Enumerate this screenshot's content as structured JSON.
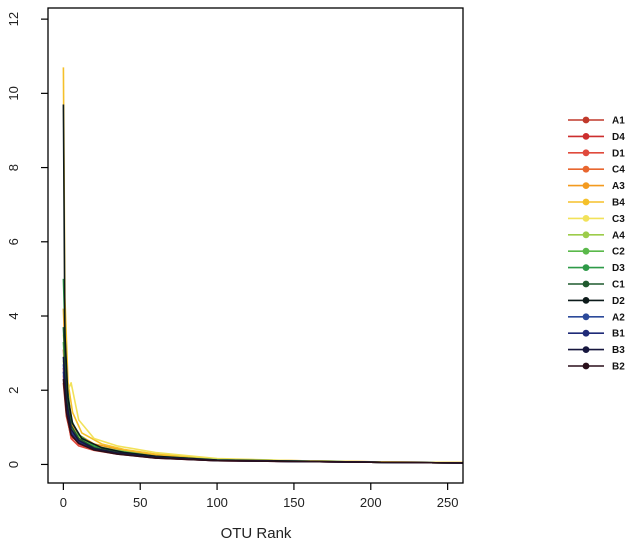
{
  "chart_data": {
    "type": "line",
    "title": "",
    "xlabel": "OTU Rank",
    "ylabel": "",
    "xlim": [
      -10,
      260
    ],
    "ylim": [
      -0.5,
      12.3
    ],
    "x_ticks": [
      0,
      50,
      100,
      150,
      200,
      250
    ],
    "y_ticks": [
      0,
      2,
      4,
      6,
      8,
      10,
      12
    ],
    "grid": false,
    "legend_position": "right",
    "series": [
      {
        "name": "A1",
        "color": "#c0392b",
        "start": 2.2,
        "values": [
          [
            0,
            2.2
          ],
          [
            2,
            1.3
          ],
          [
            5,
            0.75
          ],
          [
            10,
            0.6
          ],
          [
            20,
            0.42
          ],
          [
            35,
            0.3
          ],
          [
            60,
            0.18
          ],
          [
            100,
            0.1
          ],
          [
            150,
            0.08
          ],
          [
            200,
            0.06
          ],
          [
            260,
            0.04
          ]
        ]
      },
      {
        "name": "D4",
        "color": "#cc2e2e",
        "start": 2.6,
        "values": [
          [
            0,
            2.6
          ],
          [
            2,
            1.5
          ],
          [
            5,
            0.8
          ],
          [
            10,
            0.55
          ],
          [
            20,
            0.4
          ],
          [
            35,
            0.3
          ],
          [
            60,
            0.18
          ],
          [
            100,
            0.11
          ],
          [
            150,
            0.08
          ],
          [
            200,
            0.06
          ],
          [
            260,
            0.04
          ]
        ]
      },
      {
        "name": "D1",
        "color": "#e04a3c",
        "start": 2.4,
        "values": [
          [
            0,
            2.4
          ],
          [
            2,
            1.4
          ],
          [
            5,
            0.7
          ],
          [
            10,
            0.5
          ],
          [
            20,
            0.38
          ],
          [
            35,
            0.28
          ],
          [
            60,
            0.17
          ],
          [
            100,
            0.1
          ],
          [
            150,
            0.08
          ],
          [
            200,
            0.06
          ],
          [
            260,
            0.04
          ]
        ]
      },
      {
        "name": "C4",
        "color": "#e8662f",
        "start": 3.1,
        "values": [
          [
            0,
            3.1
          ],
          [
            2,
            1.7
          ],
          [
            5,
            0.9
          ],
          [
            10,
            0.62
          ],
          [
            20,
            0.45
          ],
          [
            35,
            0.33
          ],
          [
            60,
            0.2
          ],
          [
            100,
            0.12
          ],
          [
            150,
            0.09
          ],
          [
            200,
            0.06
          ],
          [
            260,
            0.04
          ]
        ]
      },
      {
        "name": "A3",
        "color": "#f39a1f",
        "start": 4.2,
        "values": [
          [
            0,
            4.2
          ],
          [
            2,
            2.0
          ],
          [
            5,
            1.1
          ],
          [
            10,
            0.8
          ],
          [
            20,
            0.55
          ],
          [
            35,
            0.42
          ],
          [
            60,
            0.25
          ],
          [
            100,
            0.14
          ],
          [
            150,
            0.1
          ],
          [
            200,
            0.07
          ],
          [
            260,
            0.05
          ]
        ]
      },
      {
        "name": "B4",
        "color": "#f5c02a",
        "start": 10.7,
        "values": [
          [
            0,
            10.7
          ],
          [
            1,
            4.5
          ],
          [
            3,
            2.2
          ],
          [
            6,
            1.4
          ],
          [
            12,
            0.85
          ],
          [
            25,
            0.55
          ],
          [
            40,
            0.4
          ],
          [
            60,
            0.28
          ],
          [
            100,
            0.15
          ],
          [
            150,
            0.1
          ],
          [
            200,
            0.07
          ],
          [
            260,
            0.05
          ]
        ]
      },
      {
        "name": "C3",
        "color": "#f2e25a",
        "start": 3.5,
        "values": [
          [
            0,
            3.5
          ],
          [
            3,
            2.0
          ],
          [
            5,
            2.2
          ],
          [
            10,
            1.2
          ],
          [
            20,
            0.7
          ],
          [
            35,
            0.5
          ],
          [
            60,
            0.32
          ],
          [
            100,
            0.16
          ],
          [
            150,
            0.1
          ],
          [
            200,
            0.07
          ],
          [
            260,
            0.05
          ]
        ]
      },
      {
        "name": "A4",
        "color": "#9ccc4a",
        "start": 2.8,
        "values": [
          [
            0,
            2.8
          ],
          [
            2,
            1.6
          ],
          [
            5,
            1.0
          ],
          [
            10,
            0.75
          ],
          [
            20,
            0.5
          ],
          [
            35,
            0.38
          ],
          [
            60,
            0.22
          ],
          [
            100,
            0.13
          ],
          [
            150,
            0.09
          ],
          [
            200,
            0.06
          ],
          [
            260,
            0.04
          ]
        ]
      },
      {
        "name": "C2",
        "color": "#5ab94a",
        "start": 3.3,
        "values": [
          [
            0,
            3.3
          ],
          [
            2,
            1.8
          ],
          [
            5,
            1.0
          ],
          [
            10,
            0.7
          ],
          [
            20,
            0.48
          ],
          [
            35,
            0.35
          ],
          [
            60,
            0.21
          ],
          [
            100,
            0.12
          ],
          [
            150,
            0.09
          ],
          [
            200,
            0.06
          ],
          [
            260,
            0.04
          ]
        ]
      },
      {
        "name": "D3",
        "color": "#2e9a48",
        "start": 5.0,
        "values": [
          [
            0,
            5.0
          ],
          [
            2,
            2.3
          ],
          [
            5,
            1.2
          ],
          [
            10,
            0.8
          ],
          [
            20,
            0.5
          ],
          [
            35,
            0.36
          ],
          [
            60,
            0.22
          ],
          [
            100,
            0.12
          ],
          [
            150,
            0.09
          ],
          [
            200,
            0.06
          ],
          [
            260,
            0.04
          ]
        ]
      },
      {
        "name": "C1",
        "color": "#1f5a2e",
        "start": 3.7,
        "values": [
          [
            0,
            3.7
          ],
          [
            2,
            1.9
          ],
          [
            5,
            1.05
          ],
          [
            10,
            0.7
          ],
          [
            20,
            0.45
          ],
          [
            35,
            0.32
          ],
          [
            60,
            0.2
          ],
          [
            100,
            0.11
          ],
          [
            150,
            0.08
          ],
          [
            200,
            0.06
          ],
          [
            260,
            0.04
          ]
        ]
      },
      {
        "name": "D2",
        "color": "#0d1a1a",
        "start": 9.7,
        "values": [
          [
            0,
            9.7
          ],
          [
            1,
            3.5
          ],
          [
            3,
            1.8
          ],
          [
            6,
            1.1
          ],
          [
            12,
            0.7
          ],
          [
            25,
            0.45
          ],
          [
            40,
            0.32
          ],
          [
            60,
            0.22
          ],
          [
            100,
            0.12
          ],
          [
            150,
            0.09
          ],
          [
            200,
            0.06
          ],
          [
            260,
            0.04
          ]
        ]
      },
      {
        "name": "A2",
        "color": "#2c4a9a",
        "start": 2.7,
        "values": [
          [
            0,
            2.7
          ],
          [
            2,
            1.6
          ],
          [
            5,
            0.9
          ],
          [
            10,
            0.62
          ],
          [
            20,
            0.42
          ],
          [
            35,
            0.3
          ],
          [
            60,
            0.19
          ],
          [
            100,
            0.11
          ],
          [
            150,
            0.08
          ],
          [
            200,
            0.06
          ],
          [
            260,
            0.04
          ]
        ]
      },
      {
        "name": "B1",
        "color": "#1f2a78",
        "start": 2.5,
        "values": [
          [
            0,
            2.5
          ],
          [
            2,
            1.5
          ],
          [
            5,
            0.85
          ],
          [
            10,
            0.6
          ],
          [
            20,
            0.4
          ],
          [
            35,
            0.29
          ],
          [
            60,
            0.18
          ],
          [
            100,
            0.1
          ],
          [
            150,
            0.08
          ],
          [
            200,
            0.06
          ],
          [
            260,
            0.04
          ]
        ]
      },
      {
        "name": "B3",
        "color": "#16163e",
        "start": 2.9,
        "values": [
          [
            0,
            2.9
          ],
          [
            2,
            1.7
          ],
          [
            5,
            0.95
          ],
          [
            10,
            0.65
          ],
          [
            20,
            0.43
          ],
          [
            35,
            0.31
          ],
          [
            60,
            0.19
          ],
          [
            100,
            0.11
          ],
          [
            150,
            0.08
          ],
          [
            200,
            0.06
          ],
          [
            260,
            0.04
          ]
        ]
      },
      {
        "name": "B2",
        "color": "#2a0f1a",
        "start": 2.3,
        "values": [
          [
            0,
            2.3
          ],
          [
            2,
            1.4
          ],
          [
            5,
            0.8
          ],
          [
            10,
            0.57
          ],
          [
            20,
            0.39
          ],
          [
            35,
            0.28
          ],
          [
            60,
            0.17
          ],
          [
            100,
            0.1
          ],
          [
            150,
            0.08
          ],
          [
            200,
            0.06
          ],
          [
            260,
            0.04
          ]
        ]
      }
    ]
  }
}
